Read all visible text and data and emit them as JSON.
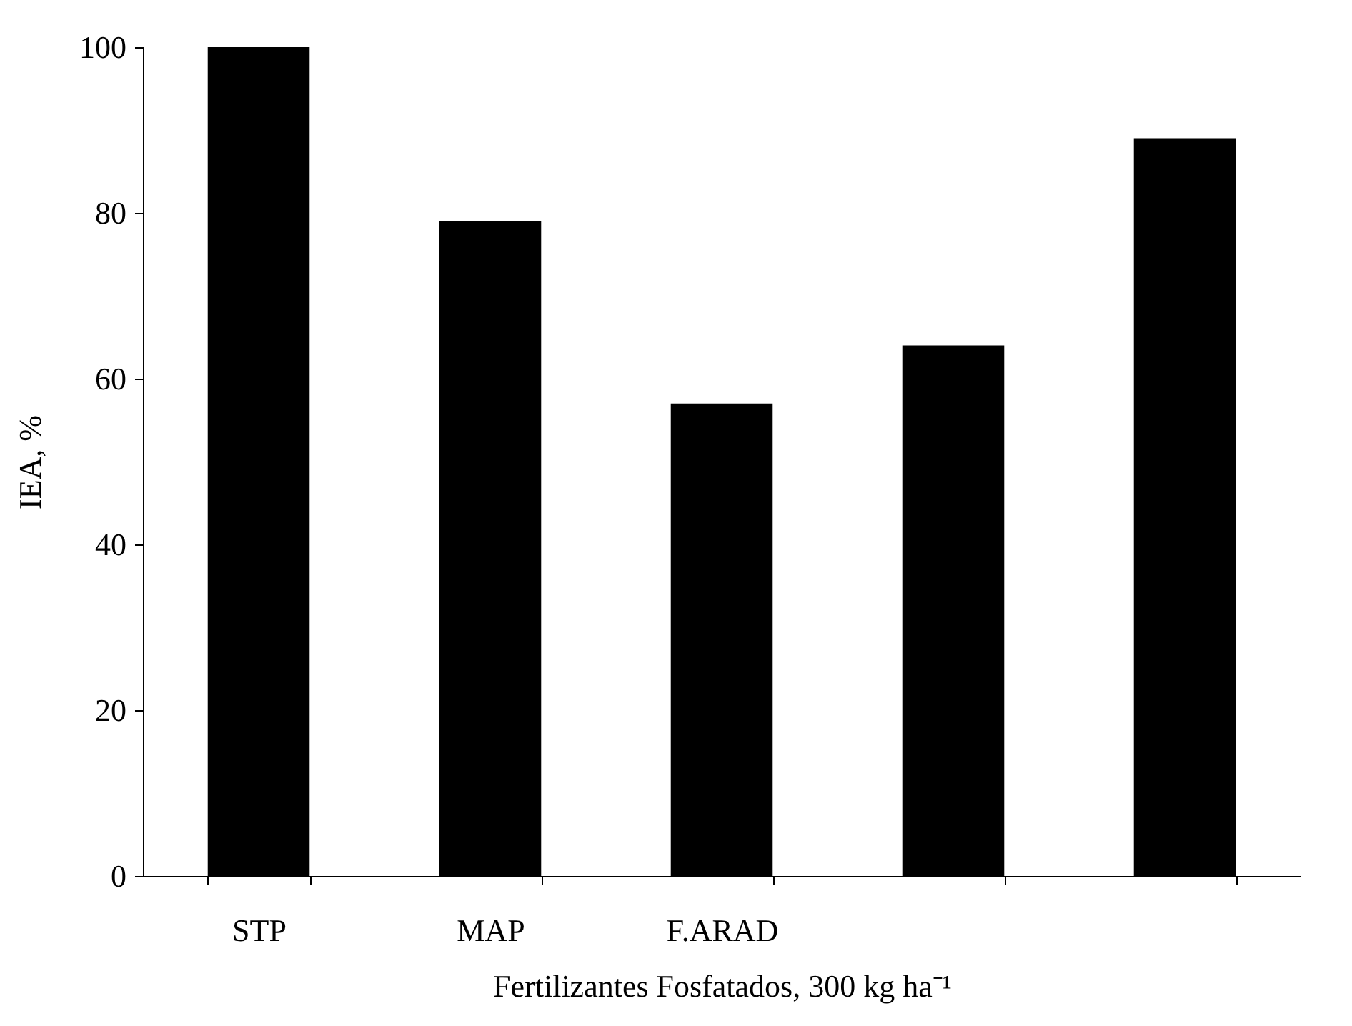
{
  "chart_data": {
    "type": "bar",
    "xlabel": "Fertilizantes Fosfatados, 300 kg ha⁻¹",
    "ylabel": "IEA, %",
    "categories": [
      "STP",
      "MAP",
      "F.ARAD",
      null,
      null
    ],
    "values": [
      100,
      79,
      57,
      64,
      89
    ],
    "color": "#000000",
    "ylim": [
      0,
      100
    ],
    "yticks": [
      0,
      20,
      40,
      60,
      80,
      100
    ],
    "grid": false
  }
}
